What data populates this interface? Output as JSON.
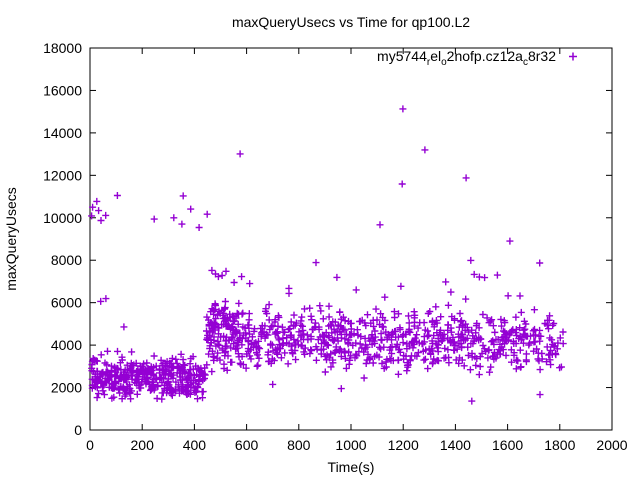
{
  "window": {
    "background": "#ffffff"
  },
  "chart_data": {
    "type": "scatter",
    "title": "maxQueryUsecs vs Time for qp100.L2",
    "xlabel": "Time(s)",
    "ylabel": "maxQueryUsecs",
    "xlim": [
      0,
      2000
    ],
    "ylim": [
      0,
      18000
    ],
    "xticks": [
      0,
      200,
      400,
      600,
      800,
      1000,
      1200,
      1400,
      1600,
      1800,
      2000
    ],
    "yticks": [
      0,
      2000,
      4000,
      6000,
      8000,
      10000,
      12000,
      14000,
      16000,
      18000
    ],
    "grid": false,
    "colors": {
      "axis": "#000000",
      "text": "#000000",
      "marker": "#9400D3",
      "background": "#ffffff"
    },
    "legend": {
      "position": "top-right-inside",
      "label_plain": "my5744_rel_o2nofp.cz12a_c8r32",
      "segments": [
        {
          "text": "my5744",
          "sub": false
        },
        {
          "text": "r",
          "sub": true
        },
        {
          "text": "el",
          "sub": false
        },
        {
          "text": "o",
          "sub": true
        },
        {
          "text": "2nofp.cz12a",
          "sub": false
        },
        {
          "text": "c",
          "sub": true
        },
        {
          "text": "8r32",
          "sub": false
        }
      ]
    },
    "series": [
      {
        "name": "my5744_rel_o2nofp.cz12a_c8r32",
        "color": "#9400D3",
        "marker": "plus",
        "seed": 1337,
        "clusters": [
          {
            "t_min": 2,
            "t_max": 443,
            "count": 390,
            "y_center": 2450,
            "y_sd": 520,
            "y_min": 1450,
            "y_max": 4250
          },
          {
            "t_min": 447,
            "t_max": 572,
            "count": 65,
            "y_center": 5000,
            "y_sd": 650,
            "y_min": 3900,
            "y_max": 6500
          },
          {
            "t_min": 446,
            "t_max": 1814,
            "count": 760,
            "y_center": 4150,
            "y_sd": 720,
            "y_min": 2600,
            "y_max": 6500
          }
        ],
        "outliers_high": [
          [
            6,
            10090
          ],
          [
            10,
            10500
          ],
          [
            26,
            10770
          ],
          [
            33,
            10340
          ],
          [
            42,
            9870
          ],
          [
            60,
            10110
          ],
          [
            105,
            11050
          ],
          [
            246,
            9940
          ],
          [
            321,
            10000
          ],
          [
            352,
            9700
          ],
          [
            357,
            11030
          ],
          [
            386,
            10410
          ],
          [
            418,
            9540
          ],
          [
            449,
            10170
          ],
          [
            575,
            13010
          ],
          [
            1111,
            9670
          ],
          [
            1196,
            11590
          ],
          [
            1199,
            15130
          ],
          [
            1283,
            13200
          ],
          [
            1441,
            11880
          ],
          [
            1609,
            8900
          ]
        ],
        "outliers_mid": [
          [
            41,
            6060
          ],
          [
            61,
            6190
          ],
          [
            130,
            4860
          ],
          [
            467,
            7520
          ],
          [
            481,
            7350
          ],
          [
            492,
            7230
          ],
          [
            506,
            7280
          ],
          [
            521,
            7480
          ],
          [
            552,
            6950
          ],
          [
            581,
            7230
          ],
          [
            612,
            6900
          ],
          [
            762,
            6670
          ],
          [
            866,
            7890
          ],
          [
            946,
            7190
          ],
          [
            1020,
            6600
          ],
          [
            1191,
            6770
          ],
          [
            1363,
            6980
          ],
          [
            1459,
            7990
          ],
          [
            1472,
            7330
          ],
          [
            1492,
            7210
          ],
          [
            1512,
            7180
          ],
          [
            1561,
            7300
          ],
          [
            1723,
            7870
          ]
        ],
        "outliers_low": [
          [
            700,
            2150
          ],
          [
            963,
            1950
          ],
          [
            1050,
            2450
          ],
          [
            1463,
            1360
          ],
          [
            1724,
            1670
          ]
        ]
      }
    ]
  }
}
